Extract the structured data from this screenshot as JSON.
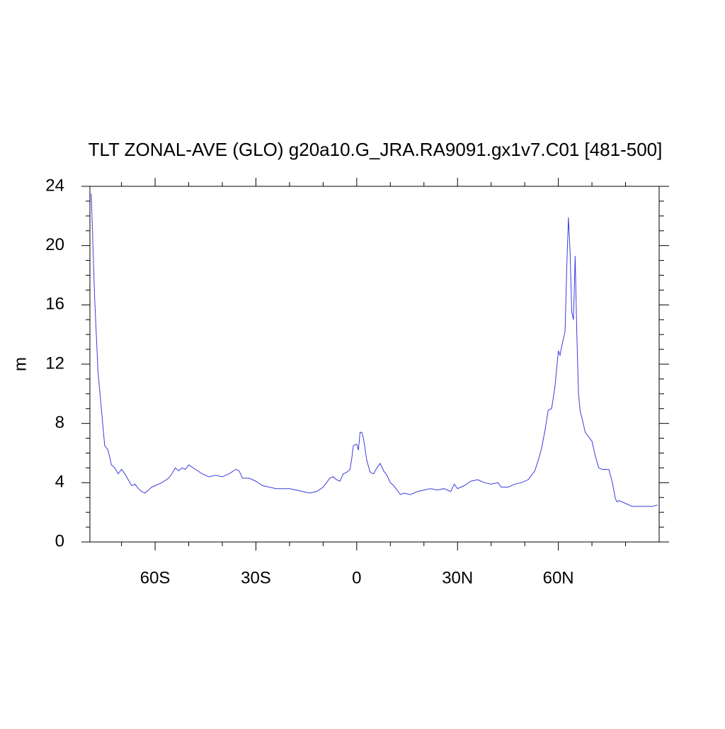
{
  "chart_data": {
    "type": "line",
    "title": "TLT ZONAL-AVE (GLO) g20a10.G_JRA.RA9091.gx1v7.C01 [481-500]",
    "y_label": "m",
    "xlim": [
      -79.4,
      90
    ],
    "ylim": [
      0,
      24
    ],
    "xticks": [
      {
        "value": -60,
        "label": "60S"
      },
      {
        "value": -30,
        "label": "30S"
      },
      0,
      {
        "value": 30,
        "label": "30N"
      },
      {
        "value": 60,
        "label": "60N"
      }
    ],
    "xminorticks": [
      -70,
      -50,
      -40,
      -20,
      -10,
      10,
      20,
      40,
      50,
      70,
      80
    ],
    "yticks": [
      0,
      4,
      8,
      12,
      16,
      20,
      24
    ],
    "yminorticks": [
      1,
      2,
      3,
      5,
      6,
      7,
      9,
      10,
      11,
      13,
      14,
      15,
      17,
      18,
      19,
      21,
      22,
      23
    ],
    "series": [
      {
        "color": "#3c3cdc",
        "x": [
          -79,
          -78.5,
          -78,
          -77.5,
          -77,
          -76,
          -75,
          -74,
          -73,
          -72,
          -71,
          -70,
          -69,
          -68,
          -67,
          -66,
          -65,
          -64,
          -63,
          -62,
          -61,
          -60,
          -58,
          -56,
          -55,
          -54,
          -53,
          -52,
          -51,
          -50,
          -48,
          -46,
          -44,
          -42,
          -40,
          -38,
          -36,
          -35,
          -34,
          -32,
          -30,
          -28,
          -26,
          -24,
          -22,
          -20,
          -18,
          -16,
          -14,
          -12,
          -10,
          -8,
          -7,
          -6,
          -5,
          -4,
          -3,
          -2,
          -1.5,
          -1,
          0,
          0.5,
          1,
          1.5,
          2,
          3,
          4,
          5,
          6,
          7,
          8,
          9,
          10,
          11,
          12,
          13,
          14,
          16,
          18,
          20,
          22,
          24,
          26,
          28,
          29,
          30,
          32,
          34,
          36,
          38,
          40,
          42,
          43,
          45,
          47,
          49,
          51,
          53,
          54,
          55,
          56,
          57,
          58,
          59,
          60,
          60.5,
          61,
          62,
          62.5,
          63,
          63.5,
          64,
          64.5,
          65,
          65.5,
          66,
          66.5,
          67,
          68,
          69,
          70,
          71,
          72,
          73,
          74,
          75,
          76,
          77,
          77.5,
          78,
          80,
          82,
          84,
          86,
          88,
          89.5
        ],
        "values": [
          23.5,
          20,
          16.5,
          14,
          11.5,
          9,
          6.5,
          6.2,
          5.2,
          5,
          4.6,
          4.9,
          4.6,
          4.2,
          3.8,
          3.9,
          3.6,
          3.4,
          3.3,
          3.5,
          3.7,
          3.8,
          4.0,
          4.3,
          4.6,
          5.0,
          4.8,
          5.0,
          4.9,
          5.2,
          4.9,
          4.6,
          4.4,
          4.5,
          4.4,
          4.6,
          4.9,
          4.8,
          4.3,
          4.3,
          4.1,
          3.8,
          3.7,
          3.6,
          3.6,
          3.6,
          3.5,
          3.4,
          3.3,
          3.4,
          3.7,
          4.3,
          4.4,
          4.2,
          4.1,
          4.6,
          4.7,
          4.9,
          5.6,
          6.5,
          6.6,
          6.2,
          7.4,
          7.4,
          7.0,
          5.5,
          4.7,
          4.6,
          5.0,
          5.3,
          4.8,
          4.5,
          4.0,
          3.8,
          3.5,
          3.2,
          3.3,
          3.2,
          3.4,
          3.5,
          3.6,
          3.5,
          3.6,
          3.4,
          3.9,
          3.6,
          3.8,
          4.1,
          4.2,
          4.0,
          3.9,
          4.0,
          3.7,
          3.7,
          3.9,
          4.0,
          4.2,
          4.8,
          5.5,
          6.3,
          7.5,
          8.9,
          9.0,
          10.5,
          12.9,
          12.6,
          13.2,
          14.2,
          18.5,
          21.9,
          19.5,
          15.5,
          15,
          19.3,
          14,
          10,
          8.8,
          8.4,
          7.4,
          7.1,
          6.8,
          5.8,
          5.0,
          4.9,
          4.9,
          4.9,
          4.1,
          2.9,
          2.7,
          2.8,
          2.6,
          2.4,
          2.4,
          2.4,
          2.4,
          2.5
        ]
      }
    ]
  }
}
